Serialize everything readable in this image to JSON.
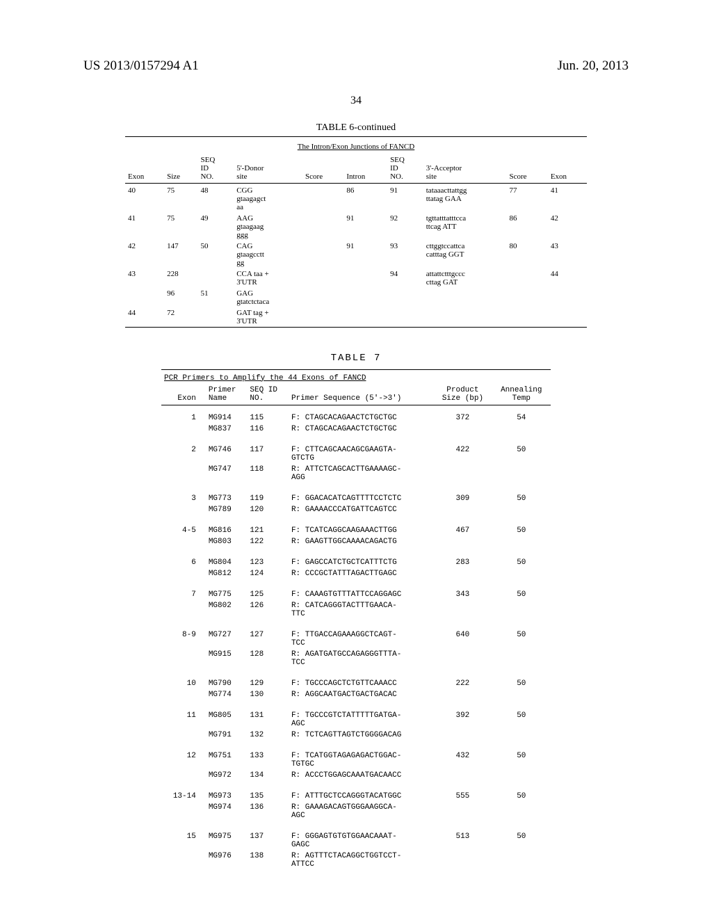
{
  "header": {
    "pub_number": "US 2013/0157294 A1",
    "pub_date": "Jun. 20, 2013"
  },
  "page_number": "34",
  "table6": {
    "title": "TABLE 6-continued",
    "subtitle": "The Intron/Exon Junctions of FANCD",
    "headers": {
      "exon": "Exon",
      "size": "Size",
      "seqid1": "SEQ\nID\nNO.",
      "donor": "5'-Donor\nsite",
      "score1": "Score",
      "intron": "Intron",
      "seqid2": "SEQ\nID\nNO.",
      "acceptor": "3'-Acceptor\nsite",
      "score2": "Score",
      "exon2": "Exon"
    },
    "rows": [
      {
        "exon": "40",
        "size": "75",
        "seqid1": "48",
        "donor": "CGG\ngtaagagct\naa",
        "score1": "",
        "intron": "86",
        "seqid2": "91",
        "acceptor": "tataaacttattgg\nttatag GAA",
        "score2": "77",
        "exon2": "41"
      },
      {
        "exon": "41",
        "size": "75",
        "seqid1": "49",
        "donor": "AAG\ngtaagaag\nggg",
        "score1": "",
        "intron": "91",
        "seqid2": "92",
        "acceptor": "tgttatttatttcca\nttcag ATT",
        "score2": "86",
        "exon2": "42"
      },
      {
        "exon": "42",
        "size": "147",
        "seqid1": "50",
        "donor": "CAG\ngtaagcctt\ngg",
        "score1": "",
        "intron": "91",
        "seqid2": "93",
        "acceptor": "cttggtccattca\ncatttag GGT",
        "score2": "80",
        "exon2": "43"
      },
      {
        "exon": "43",
        "size": "228",
        "seqid1": "",
        "donor": "CCA taa +\n3'UTR",
        "score1": "",
        "intron": "",
        "seqid2": "94",
        "acceptor": "attattctttgccc\ncttag GAT",
        "score2": "",
        "exon2": "44"
      },
      {
        "exon": "",
        "size": "96",
        "seqid1": "51",
        "donor": "GAG\ngtatctctaca",
        "score1": "",
        "intron": "",
        "seqid2": "",
        "acceptor": "",
        "score2": "",
        "exon2": ""
      },
      {
        "exon": "44",
        "size": "72",
        "seqid1": "",
        "donor": "GAT tag +\n3'UTR",
        "score1": "",
        "intron": "",
        "seqid2": "",
        "acceptor": "",
        "score2": "",
        "exon2": ""
      }
    ]
  },
  "table7": {
    "title": "TABLE 7",
    "subtitle": "PCR Primers to Amplify the 44 Exons of FANCD",
    "headers": {
      "exon": "Exon",
      "primer": "Primer\nName",
      "seqid": "SEQ ID\nNO.",
      "seq": "Primer Sequence (5'->3')",
      "product": "Product\nSize (bp)",
      "temp": "Annealing\nTemp"
    },
    "groups": [
      {
        "exon": "1",
        "rows": [
          {
            "primer": "MG914",
            "seqid": "115",
            "seq": "F: CTAGCACAGAACTCTGCTGC",
            "product": "372",
            "temp": "54"
          },
          {
            "primer": "MG837",
            "seqid": "116",
            "seq": "R: CTAGCACAGAACTCTGCTGC",
            "product": "",
            "temp": ""
          }
        ]
      },
      {
        "exon": "2",
        "rows": [
          {
            "primer": "MG746",
            "seqid": "117",
            "seq": "F: CTTCAGCAACAGCGAAGTA-\nGTCTG",
            "product": "422",
            "temp": "50"
          },
          {
            "primer": "MG747",
            "seqid": "118",
            "seq": "R: ATTCTCAGCACTTGAAAAGC-\nAGG",
            "product": "",
            "temp": ""
          }
        ]
      },
      {
        "exon": "3",
        "rows": [
          {
            "primer": "MG773",
            "seqid": "119",
            "seq": "F: GGACACATCAGTTTTCCTCTC",
            "product": "309",
            "temp": "50"
          },
          {
            "primer": "MG789",
            "seqid": "120",
            "seq": "R: GAAAACCCATGATTCAGTCC",
            "product": "",
            "temp": ""
          }
        ]
      },
      {
        "exon": "4-5",
        "rows": [
          {
            "primer": "MG816",
            "seqid": "121",
            "seq": "F: TCATCAGGCAAGAAACTTGG",
            "product": "467",
            "temp": "50"
          },
          {
            "primer": "MG803",
            "seqid": "122",
            "seq": "R: GAAGTTGGCAAAACAGACTG",
            "product": "",
            "temp": ""
          }
        ]
      },
      {
        "exon": "6",
        "rows": [
          {
            "primer": "MG804",
            "seqid": "123",
            "seq": "F: GAGCCATCTGCTCATTTCTG",
            "product": "283",
            "temp": "50"
          },
          {
            "primer": "MG812",
            "seqid": "124",
            "seq": "R: CCCGCTATTTAGACTTGAGC",
            "product": "",
            "temp": ""
          }
        ]
      },
      {
        "exon": "7",
        "rows": [
          {
            "primer": "MG775",
            "seqid": "125",
            "seq": "F: CAAAGTGTTTATTCCAGGAGC",
            "product": "343",
            "temp": "50"
          },
          {
            "primer": "MG802",
            "seqid": "126",
            "seq": "R: CATCAGGGTACTTTGAACA-\nTTC",
            "product": "",
            "temp": ""
          }
        ]
      },
      {
        "exon": "8-9",
        "rows": [
          {
            "primer": "MG727",
            "seqid": "127",
            "seq": "F: TTGACCAGAAAGGCTCAGT-\nTCC",
            "product": "640",
            "temp": "50"
          },
          {
            "primer": "MG915",
            "seqid": "128",
            "seq": "R: AGATGATGCCAGAGGGTTTA-\nTCC",
            "product": "",
            "temp": ""
          }
        ]
      },
      {
        "exon": "10",
        "rows": [
          {
            "primer": "MG790",
            "seqid": "129",
            "seq": "F: TGCCCAGCTCTGTTCAAACC",
            "product": "222",
            "temp": "50"
          },
          {
            "primer": "MG774",
            "seqid": "130",
            "seq": "R: AGGCAATGACTGACTGACAC",
            "product": "",
            "temp": ""
          }
        ]
      },
      {
        "exon": "11",
        "rows": [
          {
            "primer": "MG805",
            "seqid": "131",
            "seq": "F: TGCCCGTCTATTTTTGATGA-\nAGC",
            "product": "392",
            "temp": "50"
          },
          {
            "primer": "MG791",
            "seqid": "132",
            "seq": "R: TCTCAGTTAGTCTGGGGACAG",
            "product": "",
            "temp": ""
          }
        ]
      },
      {
        "exon": "12",
        "rows": [
          {
            "primer": "MG751",
            "seqid": "133",
            "seq": "F: TCATGGTAGAGAGACTGGAC-\nTGTGC",
            "product": "432",
            "temp": "50"
          },
          {
            "primer": "MG972",
            "seqid": "134",
            "seq": "R: ACCCTGGAGCAAATGACAACC",
            "product": "",
            "temp": ""
          }
        ]
      },
      {
        "exon": "13-14",
        "rows": [
          {
            "primer": "MG973",
            "seqid": "135",
            "seq": "F: ATTTGCTCCAGGGTACATGGC",
            "product": "555",
            "temp": "50"
          },
          {
            "primer": "MG974",
            "seqid": "136",
            "seq": "R: GAAAGACAGTGGGAAGGCA-\nAGC",
            "product": "",
            "temp": ""
          }
        ]
      },
      {
        "exon": "15",
        "rows": [
          {
            "primer": "MG975",
            "seqid": "137",
            "seq": "F: GGGAGTGTGTGGAACAAAT-\nGAGC",
            "product": "513",
            "temp": "50"
          },
          {
            "primer": "MG976",
            "seqid": "138",
            "seq": "R: AGTTTCTACAGGCTGGTCCT-\nATTCC",
            "product": "",
            "temp": ""
          }
        ]
      }
    ]
  }
}
